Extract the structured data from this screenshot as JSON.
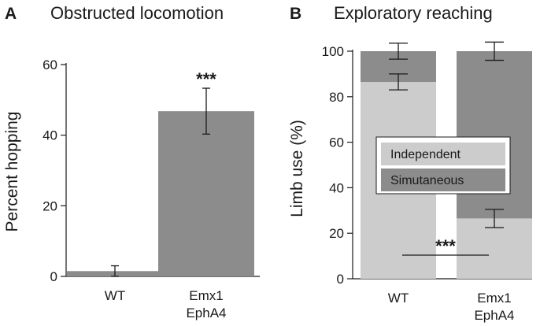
{
  "chart_data": [
    {
      "panel": "A",
      "title": "Obstructed locomotion",
      "type": "bar",
      "ylabel": "Percent hopping",
      "xlabel": "",
      "ylim": [
        0,
        60
      ],
      "yticks": [
        0,
        20,
        40,
        60
      ],
      "categories": [
        {
          "lines": [
            "WT"
          ]
        },
        {
          "lines": [
            "Emx1",
            "EphA4"
          ]
        }
      ],
      "values": [
        1.5,
        46.8
      ],
      "errors": [
        1.5,
        6.5
      ],
      "bar_color": "#8c8c8c",
      "significance": "***"
    },
    {
      "panel": "B",
      "title": "Exploratory reaching",
      "type": "bar",
      "stacked": true,
      "ylabel": "Limb use (%)",
      "xlabel": "",
      "ylim": [
        0,
        100
      ],
      "yticks": [
        0,
        20,
        40,
        60,
        80,
        100
      ],
      "categories": [
        {
          "lines": [
            "WT"
          ]
        },
        {
          "lines": [
            "Emx1",
            "EphA4"
          ]
        }
      ],
      "series": [
        {
          "name": "Independent",
          "values": [
            86.5,
            26.5
          ],
          "errors": [
            3.5,
            4
          ],
          "color": "#cccccc"
        },
        {
          "name": "Simutaneous",
          "values": [
            13.5,
            73.5
          ],
          "errors": [
            3.5,
            4
          ],
          "color": "#8c8c8c"
        }
      ],
      "legend_position": "center",
      "significance": "***"
    }
  ]
}
